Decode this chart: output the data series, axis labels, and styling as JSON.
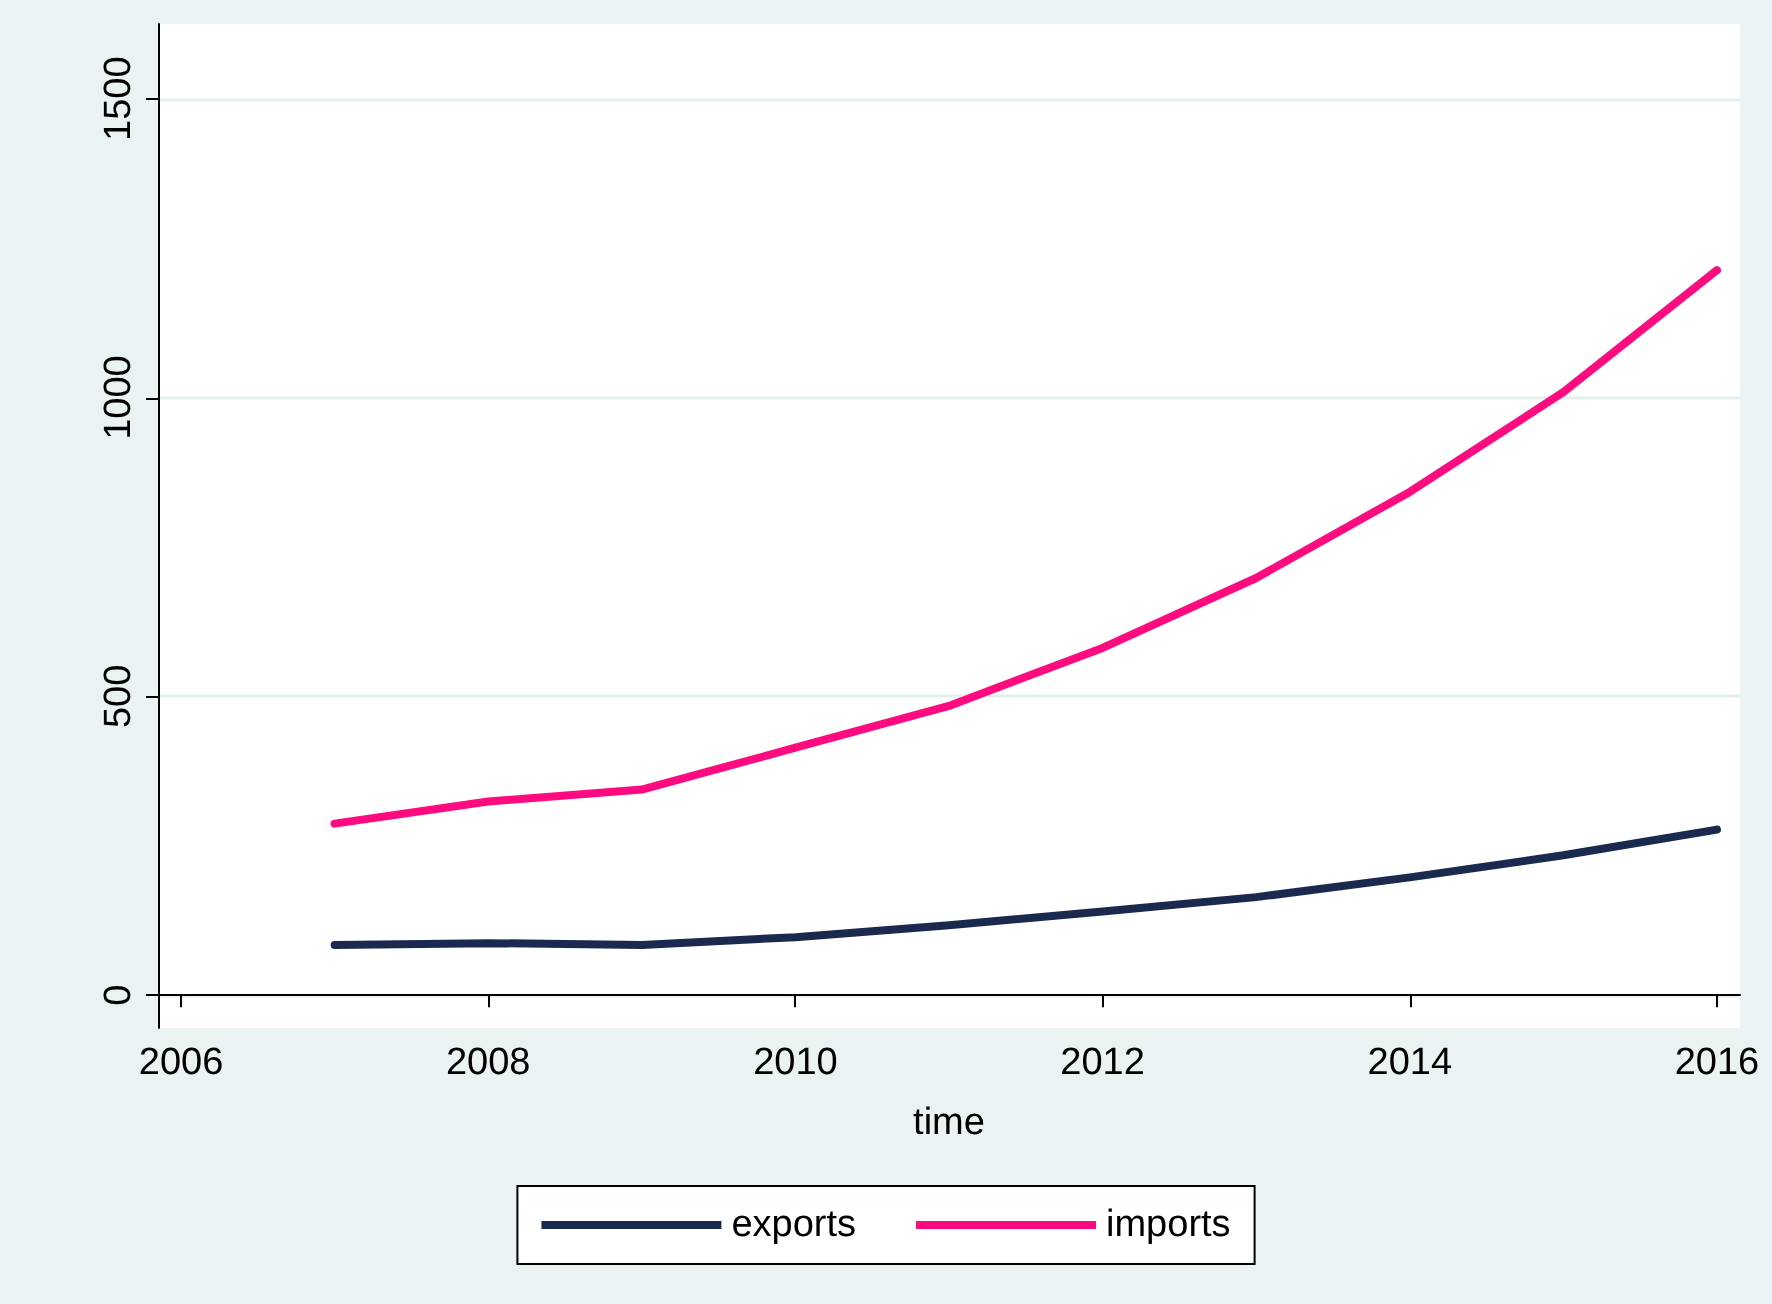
{
  "chart_data": {
    "type": "line",
    "xlabel": "time",
    "x": [
      2007,
      2008,
      2009,
      2010,
      2011,
      2012,
      2013,
      2014,
      2015,
      2016
    ],
    "series": [
      {
        "name": "exports",
        "color": "#1a2a4f",
        "values": [
          84,
          87,
          84,
          97,
          117,
          140,
          164,
          197,
          234,
          277
        ]
      },
      {
        "name": "imports",
        "color": "#ff0b7f",
        "values": [
          287,
          324,
          344,
          414,
          484,
          581,
          698,
          842,
          1009,
          1213
        ]
      }
    ],
    "xlim": [
      2005.85,
      2016.15
    ],
    "xticks": [
      2006,
      2008,
      2010,
      2012,
      2014,
      2016
    ],
    "ylim": [
      -55,
      1625
    ],
    "yticks": [
      0,
      500,
      1000,
      1500
    ],
    "grid": "y",
    "legend": "bottom",
    "marker": "none",
    "line_style": "solid"
  }
}
